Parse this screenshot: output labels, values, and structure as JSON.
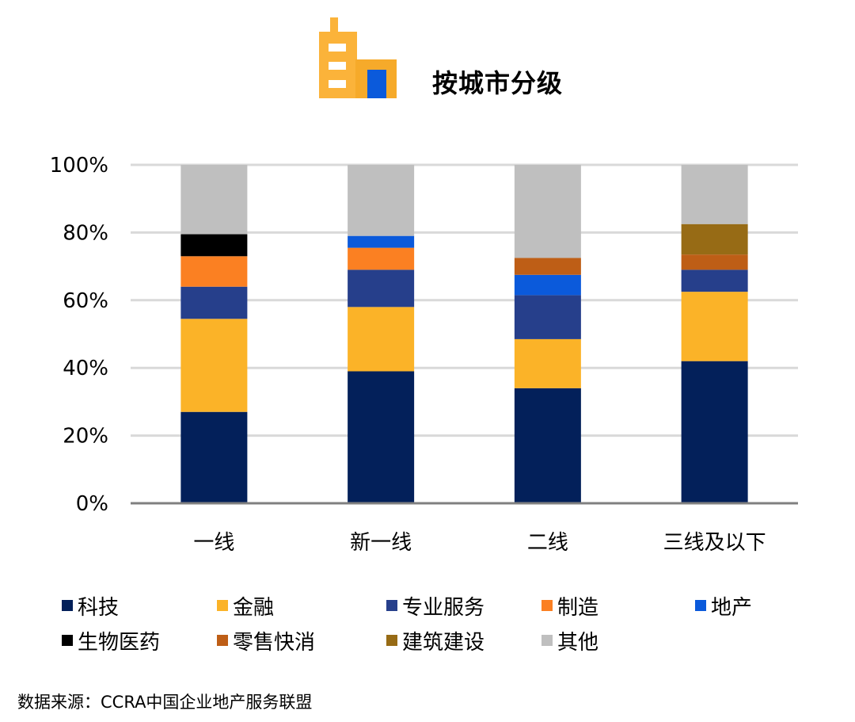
{
  "header": {
    "title": "按城市分级",
    "icon": "building-icon"
  },
  "source_note": "数据来源：CCRA中国企业地产服务联盟",
  "chart_data": {
    "type": "bar",
    "stacked": true,
    "title": "按城市分级",
    "xlabel": "",
    "ylabel": "",
    "ylim": [
      0,
      100
    ],
    "yticks": [
      0,
      20,
      40,
      60,
      80,
      100
    ],
    "ytick_labels": [
      "0%",
      "20%",
      "40%",
      "60%",
      "80%",
      "100%"
    ],
    "grid": true,
    "legend_position": "bottom",
    "categories": [
      "一线",
      "新一线",
      "二线",
      "三线及以下"
    ],
    "series": [
      {
        "name": "科技",
        "color": "#03205a",
        "values": [
          27,
          39,
          34,
          42
        ]
      },
      {
        "name": "金融",
        "color": "#fbb328",
        "values": [
          27.5,
          19,
          14.5,
          20.5
        ]
      },
      {
        "name": "专业服务",
        "color": "#263f8b",
        "values": [
          9.5,
          11,
          13,
          6.5
        ]
      },
      {
        "name": "制造",
        "color": "#fb8022",
        "values": [
          9,
          6.5,
          0,
          0
        ]
      },
      {
        "name": "地产",
        "color": "#0b5adb",
        "values": [
          0,
          3.5,
          6,
          0
        ]
      },
      {
        "name": "生物医药",
        "color": "#000000",
        "values": [
          6.5,
          0,
          0,
          0
        ]
      },
      {
        "name": "零售快消",
        "color": "#be5e16",
        "values": [
          0,
          0,
          5,
          4.5
        ]
      },
      {
        "name": "建筑建设",
        "color": "#976b15",
        "values": [
          0,
          0,
          0,
          9
        ]
      },
      {
        "name": "其他",
        "color": "#bfbfbf",
        "values": [
          20.5,
          21,
          27.5,
          17.5
        ]
      }
    ]
  }
}
